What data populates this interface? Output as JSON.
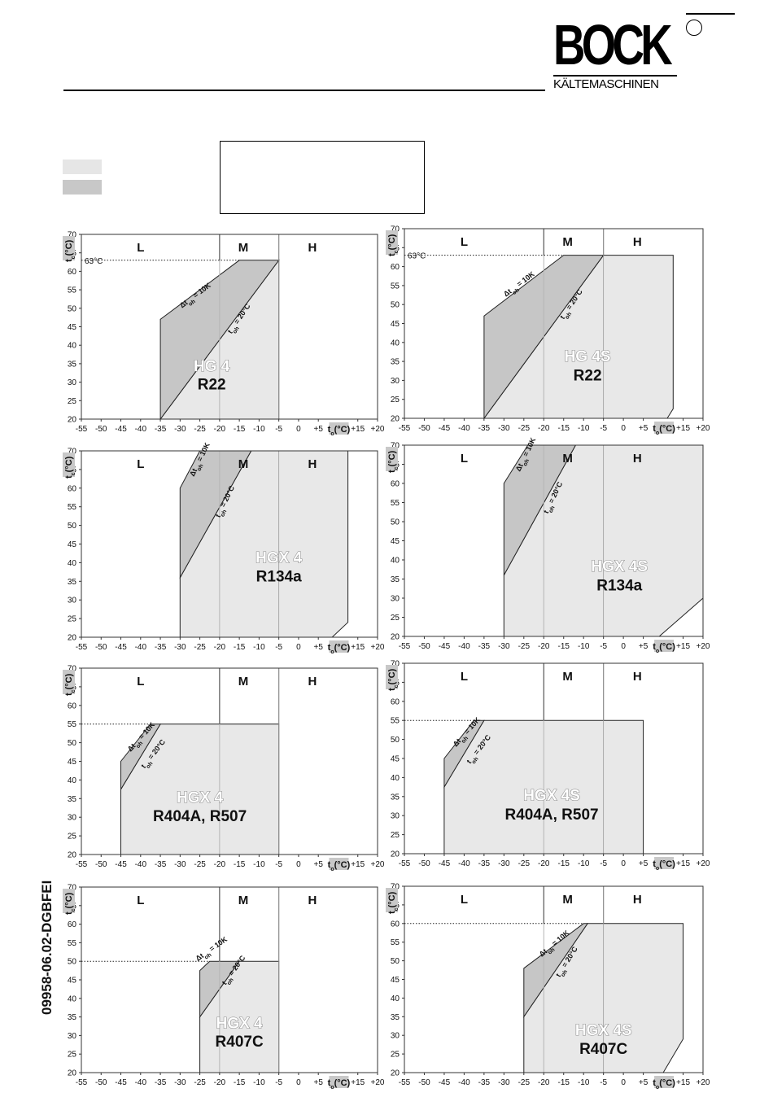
{
  "header": {
    "brand": "BOCK",
    "brand_sub": "KÄLTEMASCHINEN",
    "doc_code": "09958-06.02-DGBFEI"
  },
  "axis_labels": {
    "y": "tc(°C)",
    "x": "to(°C)",
    "y_main": "t",
    "y_sub": "c",
    "y_unit": "(°C)",
    "x_main": "t",
    "x_sub": "o",
    "x_unit": "(°C)"
  },
  "zone_labels": [
    "L",
    "M",
    "H"
  ],
  "annotations": {
    "dt_main": "Δt",
    "dt_sub": "oh",
    "dt_val": " = 10K",
    "toh_main": "t",
    "toh_sub": "oh",
    "toh_val": " = 20°C"
  },
  "chart_data": [
    {
      "type": "area",
      "title": "HG 4",
      "refrigerant": "R22",
      "xlim": [
        -55,
        20
      ],
      "ylim": [
        20,
        70
      ],
      "x_ticks": [
        "-55",
        "-50",
        "-45",
        "-40",
        "-35",
        "-30",
        "-25",
        "-20",
        "-15",
        "-10",
        "-5",
        "0",
        "+5",
        "+10",
        "+15",
        "+20"
      ],
      "y_ticks": [
        "20",
        "25",
        "30",
        "35",
        "40",
        "45",
        "50",
        "55",
        "60",
        "65",
        "70"
      ],
      "zone_dividers": [
        -20,
        -5
      ],
      "grid_x": [
        -20
      ],
      "light_polygon": [
        [
          -35,
          20
        ],
        [
          -5,
          63
        ],
        [
          -5,
          20
        ]
      ],
      "dark_polygon": [
        [
          -35,
          20
        ],
        [
          -35,
          47
        ],
        [
          -15,
          63
        ],
        [
          -5,
          63
        ]
      ],
      "dotted_limit": {
        "y": 63,
        "label": "63°C",
        "x_end": -15
      },
      "dt_label_pos": [
        -29.5,
        50,
        -37
      ],
      "toh_label_pos": [
        -17,
        43,
        -56
      ],
      "model_pos": [
        -22,
        33
      ],
      "ref_pos": [
        -22,
        28
      ]
    },
    {
      "type": "area",
      "title": "HG 4S",
      "refrigerant": "R22",
      "xlim": [
        -55,
        20
      ],
      "ylim": [
        20,
        70
      ],
      "x_ticks": [
        "-55",
        "-50",
        "-45",
        "-40",
        "-35",
        "-30",
        "-25",
        "-20",
        "-15",
        "-10",
        "-5",
        "0",
        "+5",
        "+10",
        "+15",
        "+20"
      ],
      "y_ticks": [
        "20",
        "25",
        "30",
        "35",
        "40",
        "45",
        "50",
        "55",
        "60",
        "65",
        "70"
      ],
      "zone_dividers": [
        -20,
        -5
      ],
      "grid_x": [
        -20
      ],
      "light_polygon": [
        [
          -35,
          20
        ],
        [
          -5,
          63
        ],
        [
          12.5,
          63
        ],
        [
          12.5,
          22.5
        ],
        [
          11,
          20
        ]
      ],
      "dark_polygon": [
        [
          -35,
          20
        ],
        [
          -35,
          47
        ],
        [
          -15,
          63
        ],
        [
          -5,
          63
        ]
      ],
      "dotted_limit": {
        "y": 63,
        "label": "63°C",
        "x_end": -15
      },
      "dt_label_pos": [
        -29.5,
        52,
        -37
      ],
      "toh_label_pos": [
        -15,
        46,
        -56
      ],
      "model_pos": [
        -9,
        35
      ],
      "ref_pos": [
        -9,
        30
      ]
    },
    {
      "type": "area",
      "title": "HGX 4",
      "refrigerant": "R134a",
      "xlim": [
        -55,
        20
      ],
      "ylim": [
        20,
        70
      ],
      "x_ticks": [
        "-55",
        "-50",
        "-45",
        "-40",
        "-35",
        "-30",
        "-25",
        "-20",
        "-15",
        "-10",
        "-5",
        "0",
        "+5",
        "+10",
        "+15",
        "+20"
      ],
      "y_ticks": [
        "20",
        "25",
        "30",
        "35",
        "40",
        "45",
        "50",
        "55",
        "60",
        "65",
        "70"
      ],
      "zone_dividers": [
        -20,
        -5
      ],
      "grid_x": [
        -20
      ],
      "light_polygon": [
        [
          -30,
          20
        ],
        [
          -30,
          36
        ],
        [
          -12,
          70
        ],
        [
          12.5,
          70
        ],
        [
          12.5,
          24
        ],
        [
          8.5,
          20
        ]
      ],
      "dark_polygon": [
        [
          -30,
          36
        ],
        [
          -30,
          60
        ],
        [
          -25,
          70
        ],
        [
          -12,
          70
        ]
      ],
      "dotted_limit": null,
      "dt_label_pos": [
        -26.5,
        63,
        -64
      ],
      "toh_label_pos": [
        -20,
        52,
        -64
      ],
      "model_pos": [
        -5,
        40
      ],
      "ref_pos": [
        -5,
        35
      ]
    },
    {
      "type": "area",
      "title": "HGX 4S",
      "refrigerant": "R134a",
      "xlim": [
        -55,
        20
      ],
      "ylim": [
        20,
        70
      ],
      "x_ticks": [
        "-55",
        "-50",
        "-45",
        "-40",
        "-35",
        "-30",
        "-25",
        "-20",
        "-15",
        "-10",
        "-5",
        "0",
        "+5",
        "+10",
        "+15",
        "+20"
      ],
      "y_ticks": [
        "20",
        "25",
        "30",
        "35",
        "40",
        "45",
        "50",
        "55",
        "60",
        "65",
        "70"
      ],
      "zone_dividers": [
        -20,
        -5
      ],
      "grid_x": [
        -20
      ],
      "light_polygon": [
        [
          -30,
          20
        ],
        [
          -30,
          36
        ],
        [
          -12,
          70
        ],
        [
          20,
          70
        ],
        [
          20,
          30
        ],
        [
          9,
          20
        ]
      ],
      "dark_polygon": [
        [
          -30,
          36
        ],
        [
          -30,
          60
        ],
        [
          -24,
          70
        ],
        [
          -12,
          70
        ]
      ],
      "dotted_limit": null,
      "dt_label_pos": [
        -26,
        63,
        -64
      ],
      "toh_label_pos": [
        -19,
        52,
        -64
      ],
      "model_pos": [
        -1,
        37
      ],
      "ref_pos": [
        -1,
        32
      ]
    },
    {
      "type": "area",
      "title": "HGX 4",
      "refrigerant": "R404A, R507",
      "xlim": [
        -55,
        20
      ],
      "ylim": [
        20,
        70
      ],
      "x_ticks": [
        "-55",
        "-50",
        "-45",
        "-40",
        "-35",
        "-30",
        "-25",
        "-20",
        "-15",
        "-10",
        "-5",
        "0",
        "+5",
        "+10",
        "+15",
        "+20"
      ],
      "y_ticks": [
        "20",
        "25",
        "30",
        "35",
        "40",
        "45",
        "50",
        "55",
        "60",
        "65",
        "70"
      ],
      "zone_dividers": [
        -20,
        -5
      ],
      "grid_x": [
        -20
      ],
      "light_polygon": [
        [
          -45,
          20
        ],
        [
          -45,
          37.5
        ],
        [
          -35,
          55
        ],
        [
          -5,
          55
        ],
        [
          -5,
          20
        ]
      ],
      "dark_polygon": [
        [
          -45,
          37.5
        ],
        [
          -45,
          45
        ],
        [
          -37.5,
          55
        ],
        [
          -35,
          55
        ]
      ],
      "dotted_limit": {
        "y": 55,
        "label": "",
        "x_end": -37.5
      },
      "dt_label_pos": [
        -42.5,
        47.5,
        -48
      ],
      "toh_label_pos": [
        -39,
        43,
        -52
      ],
      "model_pos": [
        -25,
        34
      ],
      "ref_pos": [
        -25,
        29
      ]
    },
    {
      "type": "area",
      "title": "HGX 4S",
      "refrigerant": "R404A, R507",
      "xlim": [
        -55,
        20
      ],
      "ylim": [
        20,
        70
      ],
      "x_ticks": [
        "-55",
        "-50",
        "-45",
        "-40",
        "-35",
        "-30",
        "-25",
        "-20",
        "-15",
        "-10",
        "-5",
        "0",
        "+5",
        "+10",
        "+15",
        "+20"
      ],
      "y_ticks": [
        "20",
        "25",
        "30",
        "35",
        "40",
        "45",
        "50",
        "55",
        "60",
        "65",
        "70"
      ],
      "zone_dividers": [
        -20,
        -5
      ],
      "grid_x": [
        -20
      ],
      "light_polygon": [
        [
          -45,
          20
        ],
        [
          -45,
          37.5
        ],
        [
          -35,
          55
        ],
        [
          5,
          55
        ],
        [
          5,
          20
        ]
      ],
      "dark_polygon": [
        [
          -45,
          37.5
        ],
        [
          -45,
          45
        ],
        [
          -37.5,
          55
        ],
        [
          -35,
          55
        ]
      ],
      "dotted_limit": {
        "y": 55,
        "label": "",
        "x_end": -37.5
      },
      "dt_label_pos": [
        -42,
        48,
        -48
      ],
      "toh_label_pos": [
        -38.5,
        43.5,
        -52
      ],
      "model_pos": [
        -18,
        34
      ],
      "ref_pos": [
        -18,
        29
      ]
    },
    {
      "type": "area",
      "title": "HGX 4",
      "refrigerant": "R407C",
      "xlim": [
        -55,
        20
      ],
      "ylim": [
        20,
        70
      ],
      "x_ticks": [
        "-55",
        "-50",
        "-45",
        "-40",
        "-35",
        "-30",
        "-25",
        "-20",
        "-15",
        "-10",
        "-5",
        "0",
        "+5",
        "+10",
        "+15",
        "+20"
      ],
      "y_ticks": [
        "20",
        "25",
        "30",
        "35",
        "40",
        "45",
        "50",
        "55",
        "60",
        "65",
        "70"
      ],
      "zone_dividers": [
        -20,
        -5
      ],
      "grid_x": [
        -20
      ],
      "light_polygon": [
        [
          -25,
          20
        ],
        [
          -25,
          35
        ],
        [
          -15,
          50
        ],
        [
          -5,
          50
        ],
        [
          -5,
          20
        ]
      ],
      "dark_polygon": [
        [
          -25,
          35
        ],
        [
          -25,
          47.5
        ],
        [
          -22.5,
          50
        ],
        [
          -15,
          50
        ]
      ],
      "dotted_limit": {
        "y": 50,
        "label": "",
        "x_end": -22.5
      },
      "dt_label_pos": [
        -25.5,
        50,
        -35
      ],
      "toh_label_pos": [
        -18.5,
        43.5,
        -54
      ],
      "model_pos": [
        -15,
        32
      ],
      "ref_pos": [
        -15,
        27
      ]
    },
    {
      "type": "area",
      "title": "HGX 4S",
      "refrigerant": "R407C",
      "xlim": [
        -55,
        20
      ],
      "ylim": [
        20,
        70
      ],
      "x_ticks": [
        "-55",
        "-50",
        "-45",
        "-40",
        "-35",
        "-30",
        "-25",
        "-20",
        "-15",
        "-10",
        "-5",
        "0",
        "+5",
        "+10",
        "+15",
        "+20"
      ],
      "y_ticks": [
        "20",
        "25",
        "30",
        "35",
        "40",
        "45",
        "50",
        "55",
        "60",
        "65",
        "70"
      ],
      "zone_dividers": [
        -20,
        -5
      ],
      "grid_x": [
        -20
      ],
      "light_polygon": [
        [
          -25,
          20
        ],
        [
          -25,
          35
        ],
        [
          -9,
          60
        ],
        [
          15,
          60
        ],
        [
          15,
          29
        ],
        [
          10,
          20
        ]
      ],
      "dark_polygon": [
        [
          -25,
          35
        ],
        [
          -25,
          48
        ],
        [
          -10,
          60
        ],
        [
          -9,
          60
        ]
      ],
      "dotted_limit": {
        "y": 60,
        "label": "",
        "x_end": -10
      },
      "dt_label_pos": [
        -20.5,
        51,
        -40
      ],
      "toh_label_pos": [
        -16,
        45.5,
        -58
      ],
      "model_pos": [
        -5,
        30
      ],
      "ref_pos": [
        -5,
        25
      ]
    }
  ]
}
